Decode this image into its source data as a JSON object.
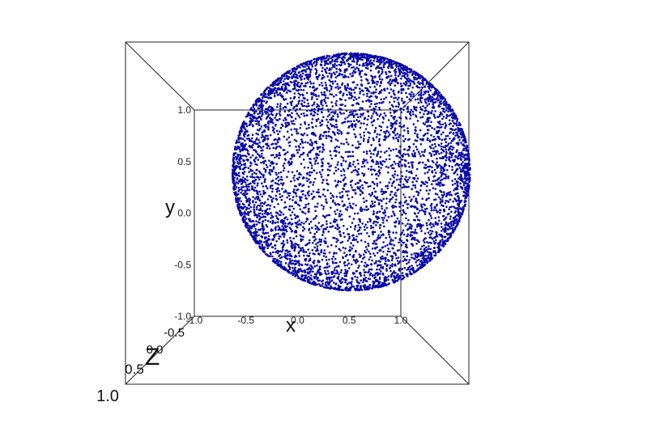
{
  "chart_data": {
    "type": "scatter",
    "title": "",
    "xlabel": "x",
    "ylabel": "y",
    "zlabel": "Z",
    "projection": "3d",
    "view": "perspective, looking down the z axis",
    "xlim": [
      -1.0,
      1.0
    ],
    "ylim": [
      -1.0,
      1.0
    ],
    "zlim": [
      -0.5,
      1.0
    ],
    "x_ticks": [
      "-1.0",
      "-0.5",
      "0.0",
      "0.5",
      "1.0"
    ],
    "y_ticks": [
      "-1.0",
      "-0.5",
      "0.0",
      "0.5",
      "1.0"
    ],
    "z_ticks": [
      "-0.5",
      "0.0",
      "0.5",
      "1.0"
    ],
    "grid": false,
    "legend": "none",
    "series": [
      {
        "marker_color": "#0a0aa6",
        "description": "points distributed on a sphere of radius ~1.15 centred near x=0.5, y=0.4"
      }
    ],
    "sphere": {
      "center": [
        0.52,
        0.4,
        0.0
      ],
      "radius": 1.15,
      "point_count": 6000
    }
  }
}
